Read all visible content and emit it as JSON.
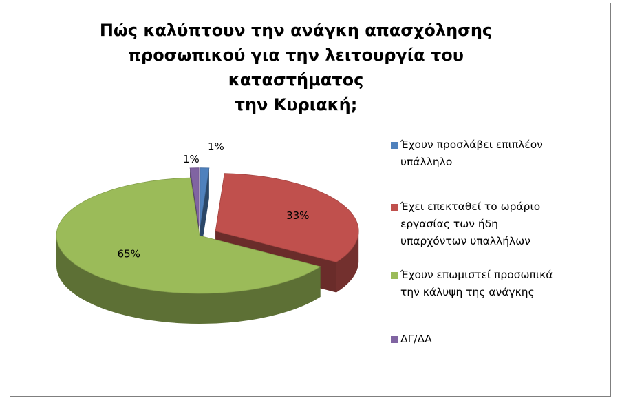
{
  "chart_data": {
    "type": "pie",
    "title_lines": [
      "Πώς καλύπτουν την ανάγκη απασχόλησης",
      "προσωπικού για την λειτουργία του καταστήματος",
      "την Κυριακή;"
    ],
    "categories": [
      "Έχουν προσλάβει επιπλέον υπάλληλο",
      "Έχει επεκταθεί το ωράριο εργασίας των ήδη υπαρχόντων υπαλλήλων",
      "Έχουν επωμιστεί προσωπικά την κάλυψη της ανάγκης",
      "ΔΓ/ΔΑ"
    ],
    "values": [
      1,
      33,
      65,
      1
    ],
    "data_labels": [
      "1%",
      "33%",
      "65%",
      "1%"
    ],
    "colors": [
      "#4f81bd",
      "#c0504d",
      "#9bbb59",
      "#8064a2"
    ],
    "legend_position": "right",
    "style": "3d-exploded"
  },
  "legend": {
    "items": [
      {
        "label": "Έχουν προσλάβει επιπλέον\nυπάλληλο",
        "color": "#4f81bd"
      },
      {
        "label": "Έχει επεκταθεί το ωράριο\nεργασίας των ήδη\nυπαρχόντων υπαλλήλων",
        "color": "#c0504d"
      },
      {
        "label": "Έχουν επωμιστεί προσωπικά\nτην κάλυψη της ανάγκης",
        "color": "#9bbb59"
      },
      {
        "label": "ΔΓ/ΔΑ",
        "color": "#8064a2"
      }
    ]
  }
}
